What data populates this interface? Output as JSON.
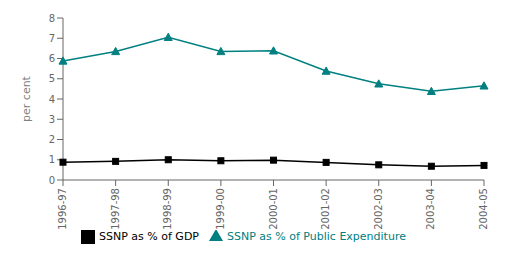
{
  "chart_data": {
    "type": "line",
    "categories": [
      "1996-97",
      "1997-98",
      "1998-99",
      "1999-00",
      "2000-01",
      "2001-02",
      "2002-03",
      "2003-04",
      "2004-05"
    ],
    "series": [
      {
        "name": "SSNP as % of GDP",
        "color": "#000000",
        "marker": "square",
        "values": [
          0.88,
          0.92,
          1.0,
          0.95,
          0.98,
          0.87,
          0.75,
          0.68,
          0.72
        ]
      },
      {
        "name": "SSNP as % of Public Expenditure",
        "color": "#008080",
        "marker": "triangle",
        "values": [
          5.88,
          6.35,
          7.05,
          6.35,
          6.38,
          5.38,
          4.75,
          4.38,
          4.65
        ]
      }
    ],
    "ylabel": "per cent",
    "ylim": [
      0,
      8
    ],
    "yticks": [
      0,
      1,
      2,
      3,
      4,
      5,
      6,
      7,
      8
    ],
    "grid": false,
    "legend": "bottom"
  }
}
